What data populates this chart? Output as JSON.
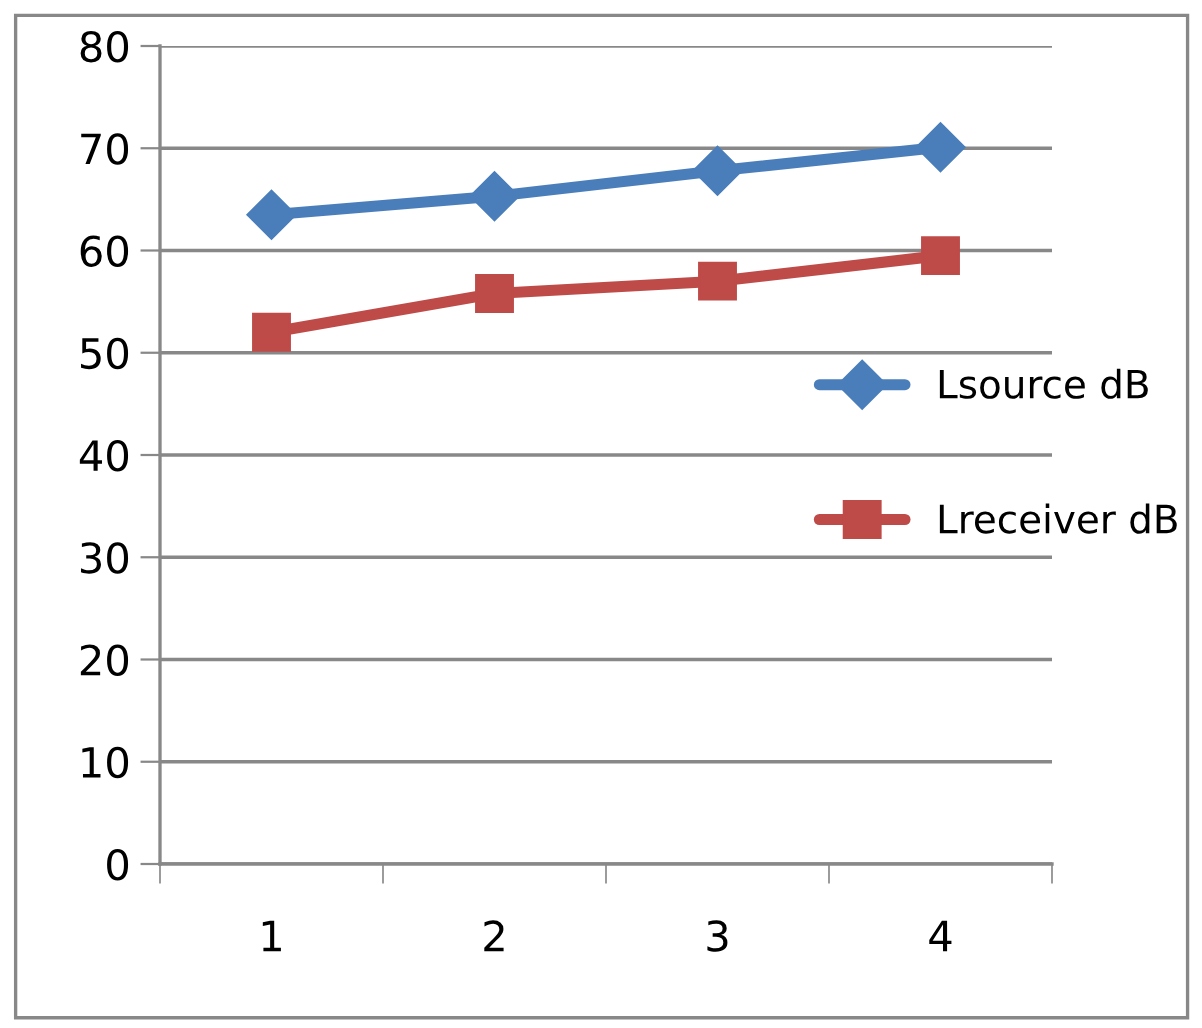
{
  "chart_data": {
    "type": "line",
    "categories": [
      "1",
      "2",
      "3",
      "4"
    ],
    "series": [
      {
        "name": "Lsource dB",
        "color": "#4a7ebb",
        "marker": "diamond",
        "values": [
          63.5,
          65.3,
          67.8,
          70.1
        ]
      },
      {
        "name": "Lreceiver dB",
        "color": "#be4b48",
        "marker": "square",
        "values": [
          52,
          55.8,
          57,
          59.5
        ]
      }
    ],
    "ylim": [
      0,
      80
    ],
    "yticks": [
      0,
      10,
      20,
      30,
      40,
      50,
      60,
      70,
      80
    ],
    "grid": "y",
    "legend": "right"
  }
}
